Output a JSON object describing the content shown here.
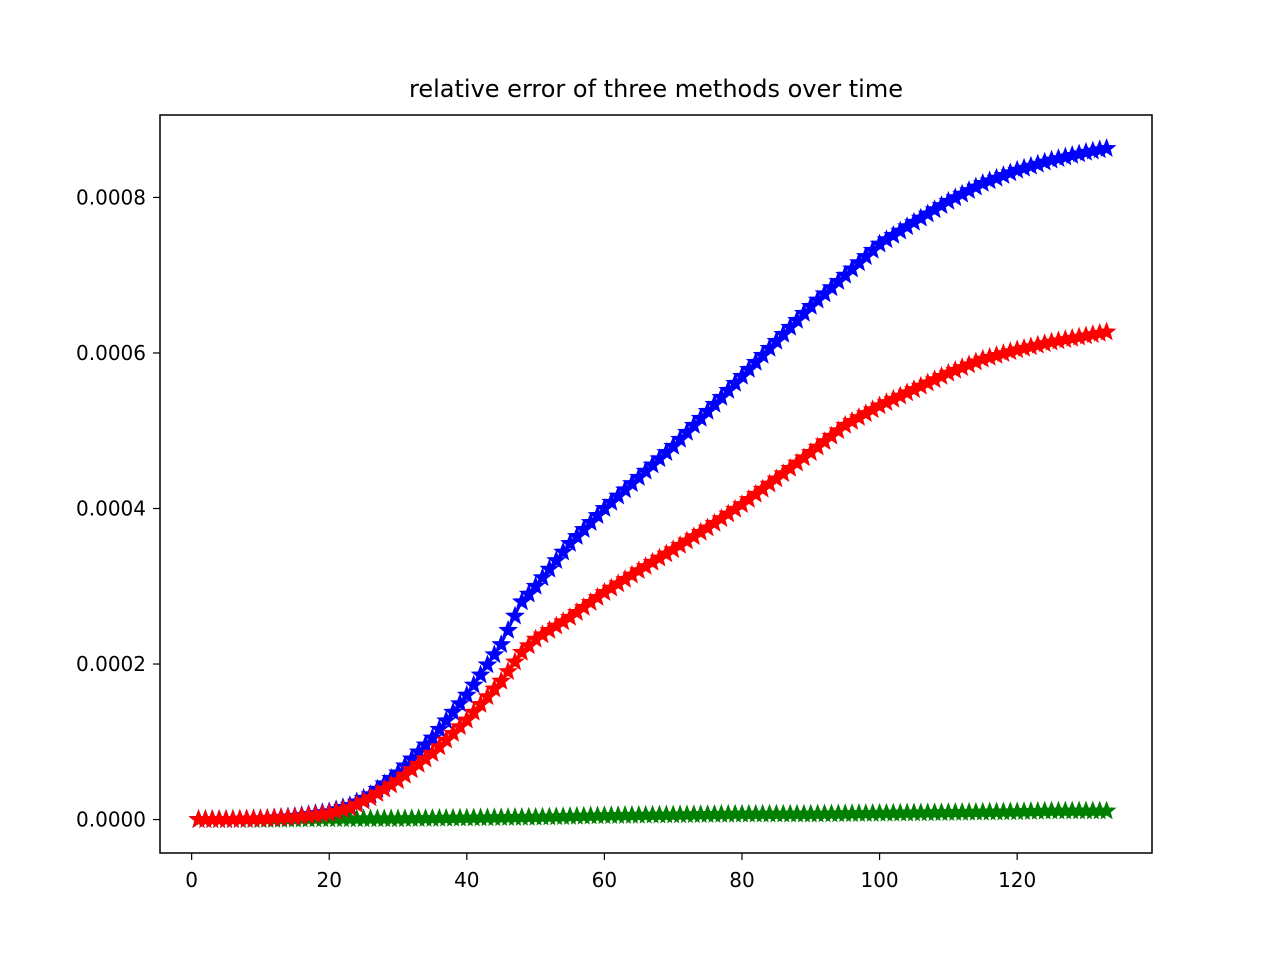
{
  "chart_data": {
    "type": "line",
    "title": "relative error of three methods over time",
    "xlabel": "",
    "ylabel": "",
    "xlim": [
      -4.6,
      139.6
    ],
    "ylim": [
      -4.3e-05,
      0.000906
    ],
    "xticks": [
      0,
      20,
      40,
      60,
      80,
      100,
      120
    ],
    "yticks": [
      0.0,
      0.0002,
      0.0004,
      0.0006,
      0.0008
    ],
    "xtick_labels": [
      "0",
      "20",
      "40",
      "60",
      "80",
      "100",
      "120"
    ],
    "ytick_labels": [
      "0.0000",
      "0.0002",
      "0.0004",
      "0.0006",
      "0.0008"
    ],
    "grid": false,
    "marker": "star",
    "series": [
      {
        "color": "#0000ff",
        "x": [
          1,
          5,
          10,
          15,
          20,
          23,
          26,
          30,
          35,
          40,
          45,
          48,
          50,
          55,
          60,
          65,
          70,
          75,
          80,
          85,
          90,
          95,
          100,
          105,
          110,
          115,
          120,
          125,
          130,
          133
        ],
        "y": [
          0.0,
          0.0,
          1e-06,
          4e-06,
          1e-05,
          1.8e-05,
          3.2e-05,
          6e-05,
          0.000105,
          0.00016,
          0.000225,
          0.00028,
          0.0003,
          0.000355,
          0.0004,
          0.00044,
          0.00048,
          0.000525,
          0.00057,
          0.000615,
          0.00066,
          0.0007,
          0.00074,
          0.000768,
          0.000795,
          0.000818,
          0.000835,
          0.000848,
          0.000858,
          0.000863
        ]
      },
      {
        "color": "#ff0000",
        "x": [
          1,
          5,
          10,
          15,
          20,
          23,
          26,
          30,
          35,
          40,
          45,
          48,
          50,
          55,
          60,
          65,
          70,
          75,
          80,
          85,
          90,
          95,
          100,
          105,
          110,
          115,
          120,
          125,
          130,
          133
        ],
        "y": [
          0.0,
          0.0,
          1e-06,
          3e-06,
          8e-06,
          1.5e-05,
          2.8e-05,
          5e-05,
          8.5e-05,
          0.000128,
          0.000178,
          0.000215,
          0.000232,
          0.00026,
          0.000292,
          0.00032,
          0.000347,
          0.000375,
          0.000405,
          0.000438,
          0.000472,
          0.000507,
          0.000532,
          0.000553,
          0.000574,
          0.000592,
          0.000604,
          0.000614,
          0.000622,
          0.000627
        ]
      },
      {
        "color": "#008000",
        "x": [
          1,
          10,
          20,
          30,
          40,
          50,
          60,
          70,
          80,
          90,
          100,
          110,
          120,
          125,
          130,
          133
        ],
        "y": [
          0.0,
          0.0,
          1e-06,
          1e-06,
          2e-06,
          3e-06,
          5e-06,
          6e-06,
          7e-06,
          7e-06,
          8e-06,
          9e-06,
          1e-05,
          1.1e-05,
          1.1e-05,
          1.1e-05
        ]
      }
    ]
  }
}
